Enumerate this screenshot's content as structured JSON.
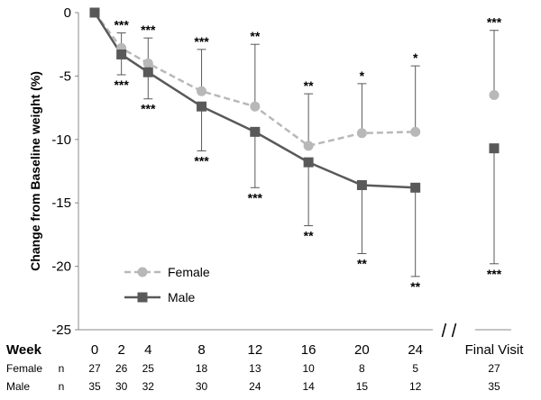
{
  "chart_data": {
    "type": "line",
    "ylabel": "Change from Baseline weight (%)",
    "xlabel": "Week",
    "ylim": [
      -25,
      0
    ],
    "yticks": [
      0,
      -5,
      -10,
      -15,
      -20,
      -25
    ],
    "weeks": [
      0,
      2,
      4,
      8,
      12,
      16,
      20,
      24
    ],
    "final_label": "Final Visit",
    "series": [
      {
        "name": "Female",
        "color": "#b8b8b8",
        "marker": "circle",
        "style": "dashed",
        "values": [
          0,
          -2.8,
          -4.0,
          -6.2,
          -7.4,
          -10.5,
          -9.5,
          -9.4
        ],
        "final": -6.5,
        "error_upper": [
          null,
          -1.6,
          -2.0,
          -2.9,
          -2.5,
          -6.4,
          -5.6,
          -4.2
        ],
        "final_error_upper": -1.4,
        "sig": [
          "",
          "***",
          "***",
          "***",
          "**",
          "**",
          "*",
          "*"
        ],
        "final_sig": "***"
      },
      {
        "name": "Male",
        "color": "#595959",
        "marker": "square",
        "style": "solid",
        "values": [
          0,
          -3.3,
          -4.7,
          -7.4,
          -9.4,
          -11.8,
          -13.6,
          -13.8
        ],
        "final": -10.7,
        "error_lower": [
          null,
          -4.9,
          -6.8,
          -10.9,
          -13.8,
          -16.8,
          -19.0,
          -20.8
        ],
        "final_error_lower": -19.8,
        "sig": [
          "",
          "***",
          "***",
          "***",
          "***",
          "**",
          "**",
          "**"
        ],
        "final_sig": "***"
      }
    ],
    "n_table": [
      {
        "group": "Female",
        "label": "n",
        "counts": [
          27,
          26,
          25,
          18,
          13,
          10,
          8,
          5
        ],
        "final": 27
      },
      {
        "group": "Male",
        "label": "n",
        "counts": [
          35,
          30,
          32,
          30,
          24,
          14,
          15,
          12
        ],
        "final": 35
      }
    ],
    "legend": [
      "Female",
      "Male"
    ],
    "break_marks": "/ /"
  }
}
